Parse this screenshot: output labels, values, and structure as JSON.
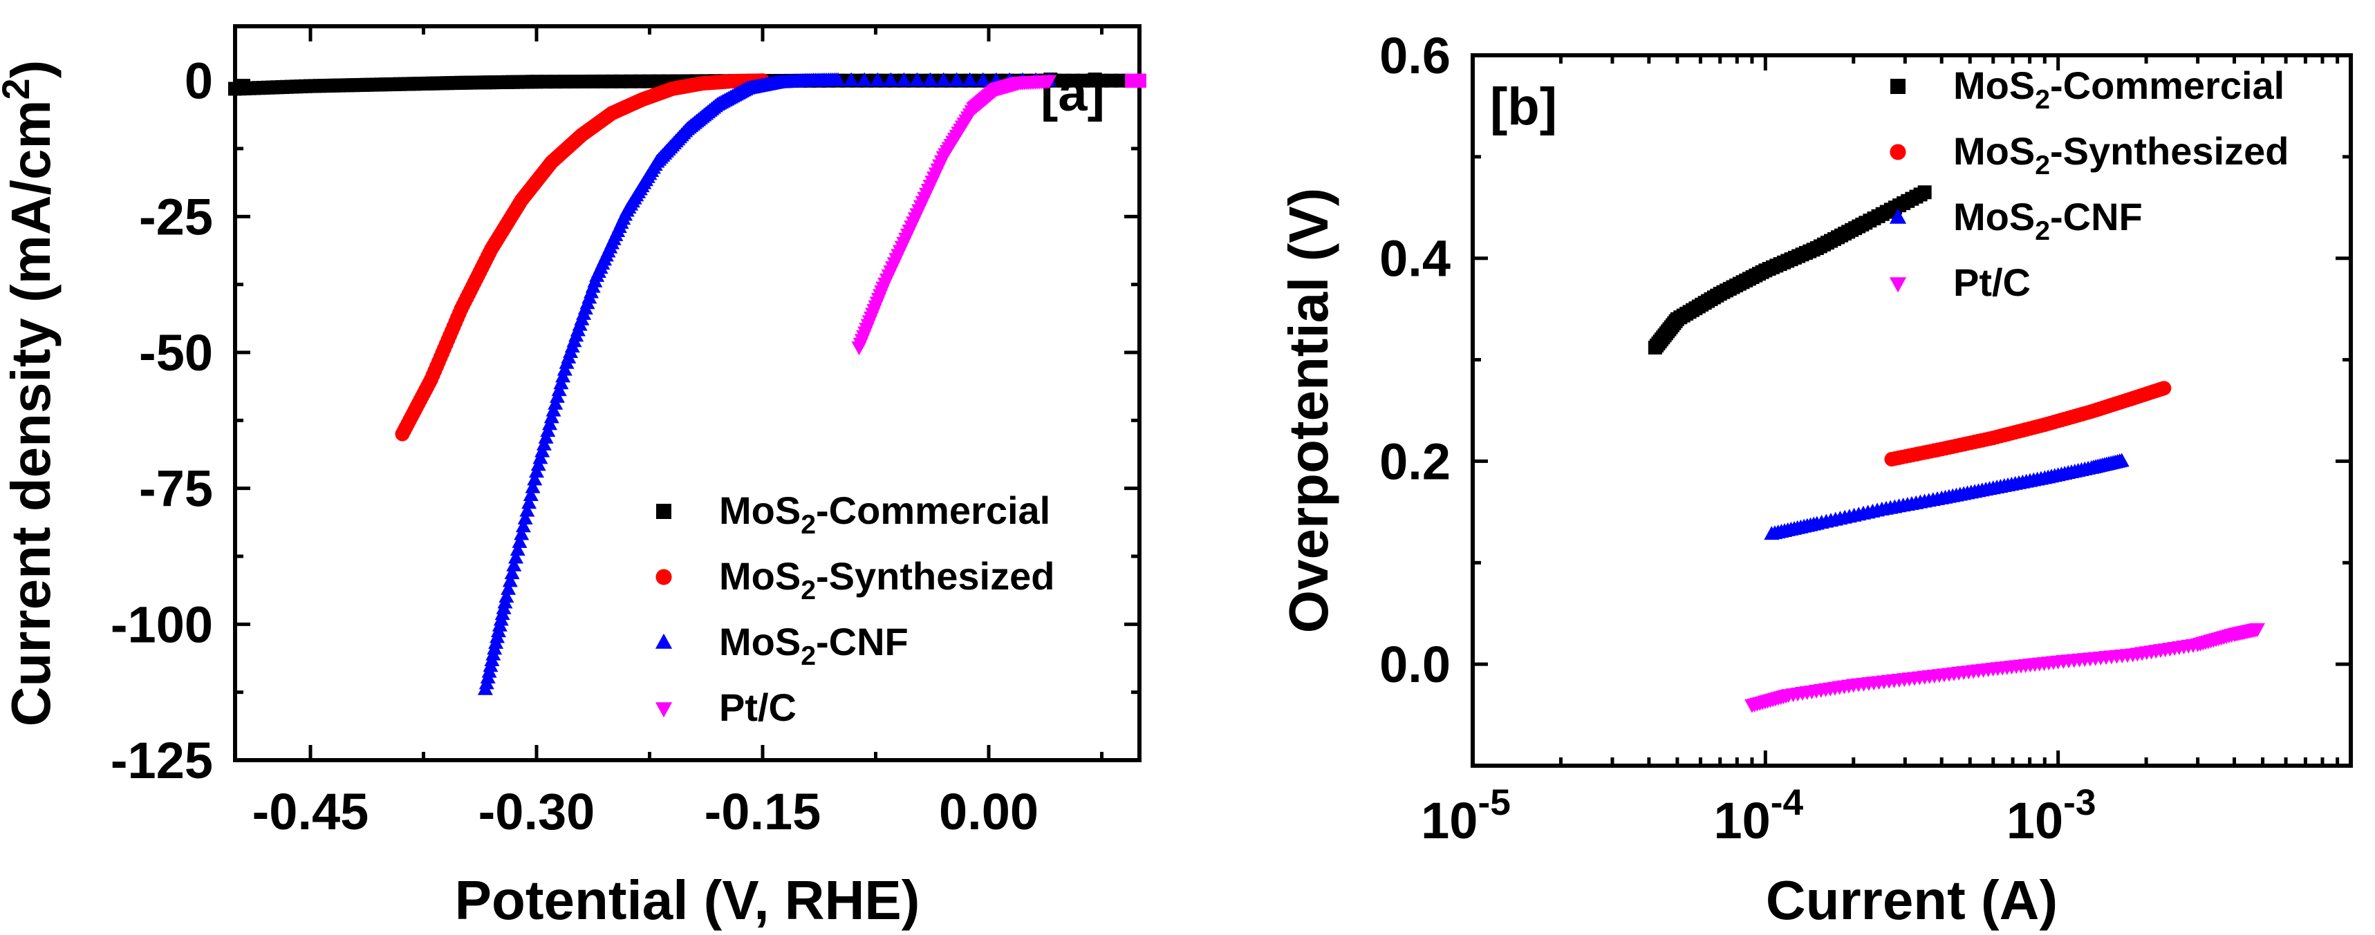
{
  "chart_data": [
    {
      "id": "a",
      "type": "line",
      "panel_label": "[a]",
      "xlabel": "Potential (V, RHE)",
      "ylabel": "Current density (mA/cm²)",
      "ylabel_parts": {
        "pre": "Current density (mA/cm",
        "sup": "2",
        "post": ")"
      },
      "xlim": [
        -0.5,
        0.1
      ],
      "ylim": [
        -125,
        10
      ],
      "xticks": [
        -0.45,
        -0.3,
        -0.15,
        0.0
      ],
      "xtick_labels": [
        "-0.45",
        "-0.30",
        "-0.15",
        "0.00"
      ],
      "yticks": [
        0,
        -25,
        -50,
        -75,
        -100,
        -125
      ],
      "ytick_labels": [
        "0",
        "-25",
        "-50",
        "-75",
        "-100",
        "-125"
      ],
      "series": [
        {
          "name": "MoS2-Commercial",
          "legend_label": {
            "pre": "MoS",
            "sub": "2",
            "post": "-Commercial"
          },
          "color": "#000000",
          "marker": "square",
          "x": [
            -0.5,
            -0.45,
            -0.4,
            -0.35,
            -0.3,
            -0.2,
            -0.1,
            0.0,
            0.1
          ],
          "y": [
            -1.5,
            -1.0,
            -0.7,
            -0.4,
            -0.2,
            -0.1,
            0.0,
            0.0,
            0.0
          ]
        },
        {
          "name": "MoS2-Synthesized",
          "legend_label": {
            "pre": "MoS",
            "sub": "2",
            "post": "-Synthesized"
          },
          "color": "#ff0000",
          "marker": "circle",
          "x": [
            -0.389,
            -0.37,
            -0.35,
            -0.33,
            -0.31,
            -0.29,
            -0.27,
            -0.25,
            -0.23,
            -0.21,
            -0.19,
            -0.17,
            -0.15
          ],
          "y": [
            -65,
            -55,
            -42,
            -31,
            -22,
            -15,
            -10,
            -6,
            -3.5,
            -1.5,
            -0.5,
            -0.1,
            0
          ]
        },
        {
          "name": "MoS2-CNF",
          "legend_label": {
            "pre": "MoS",
            "sub": "2",
            "post": "-CNF"
          },
          "color": "#0000ff",
          "marker": "triangle-up",
          "x": [
            -0.334,
            -0.32,
            -0.3,
            -0.28,
            -0.26,
            -0.24,
            -0.22,
            -0.2,
            -0.18,
            -0.16,
            -0.14,
            -0.12,
            -0.1,
            0.04
          ],
          "y": [
            -112,
            -95,
            -72,
            -52,
            -36,
            -24,
            -15,
            -9,
            -4.5,
            -1.5,
            -0.4,
            -0.1,
            0,
            0
          ]
        },
        {
          "name": "Pt/C",
          "legend_label": {
            "pre": "Pt/C",
            "sub": "",
            "post": ""
          },
          "color": "#ff00ff",
          "marker": "triangle-down",
          "x": [
            -0.086,
            -0.07,
            -0.05,
            -0.03,
            -0.01,
            0.005,
            0.02,
            0.04
          ],
          "y": [
            -49,
            -38,
            -26,
            -14,
            -5,
            -1.5,
            -0.3,
            0
          ]
        },
        {
          "name": "Pt/C-end",
          "legend_label": null,
          "color": "#ff00ff",
          "marker": "square",
          "x": [
            0.095,
            0.1
          ],
          "y": [
            0,
            0
          ]
        }
      ]
    },
    {
      "id": "b",
      "type": "scatter",
      "panel_label": "[b]",
      "xlabel": "Current (A)",
      "ylabel": "Overpotential (V)",
      "xscale": "log",
      "xlim": [
        1e-05,
        0.01
      ],
      "ylim": [
        -0.1,
        0.6
      ],
      "xticks": [
        1e-05,
        0.0001,
        0.001
      ],
      "xtick_labels": [
        {
          "base": "10",
          "exp": "-5"
        },
        {
          "base": "10",
          "exp": "-4"
        },
        {
          "base": "10",
          "exp": "-3"
        }
      ],
      "yticks": [
        0.0,
        0.2,
        0.4,
        0.6
      ],
      "ytick_labels": [
        "0.0",
        "0.2",
        "0.4",
        "0.6"
      ],
      "series": [
        {
          "name": "MoS2-Commercial",
          "legend_label": {
            "pre": "MoS",
            "sub": "2",
            "post": "-Commercial"
          },
          "color": "#000000",
          "marker": "square",
          "x": [
            4.2e-05,
            5e-05,
            7e-05,
            0.0001,
            0.00015,
            0.00022,
            0.00035
          ],
          "y": [
            0.312,
            0.34,
            0.365,
            0.388,
            0.41,
            0.435,
            0.465
          ]
        },
        {
          "name": "MoS2-Synthesized",
          "legend_label": {
            "pre": "MoS",
            "sub": "2",
            "post": "-Synthesized"
          },
          "color": "#ff0000",
          "marker": "circle",
          "x": [
            0.00027,
            0.0004,
            0.0006,
            0.0009,
            0.0013,
            0.0018,
            0.0023
          ],
          "y": [
            0.202,
            0.212,
            0.223,
            0.236,
            0.249,
            0.262,
            0.272
          ]
        },
        {
          "name": "MoS2-CNF",
          "legend_label": {
            "pre": "MoS",
            "sub": "2",
            "post": "-CNF"
          },
          "color": "#0000ff",
          "marker": "triangle-up",
          "x": [
            0.000105,
            0.00015,
            0.00025,
            0.0004,
            0.0006,
            0.0009,
            0.0013,
            0.00165
          ],
          "y": [
            0.128,
            0.138,
            0.152,
            0.163,
            0.173,
            0.183,
            0.193,
            0.2
          ]
        },
        {
          "name": "Pt/C",
          "legend_label": {
            "pre": "Pt/C",
            "sub": "",
            "post": ""
          },
          "color": "#ff00ff",
          "marker": "triangle-down",
          "x": [
            9e-05,
            0.00012,
            0.0002,
            0.00035,
            0.0006,
            0.001,
            0.0018,
            0.003,
            0.004,
            0.0048
          ],
          "y": [
            -0.04,
            -0.03,
            -0.02,
            -0.012,
            -0.004,
            0.003,
            0.01,
            0.02,
            0.03,
            0.035
          ]
        }
      ]
    }
  ]
}
